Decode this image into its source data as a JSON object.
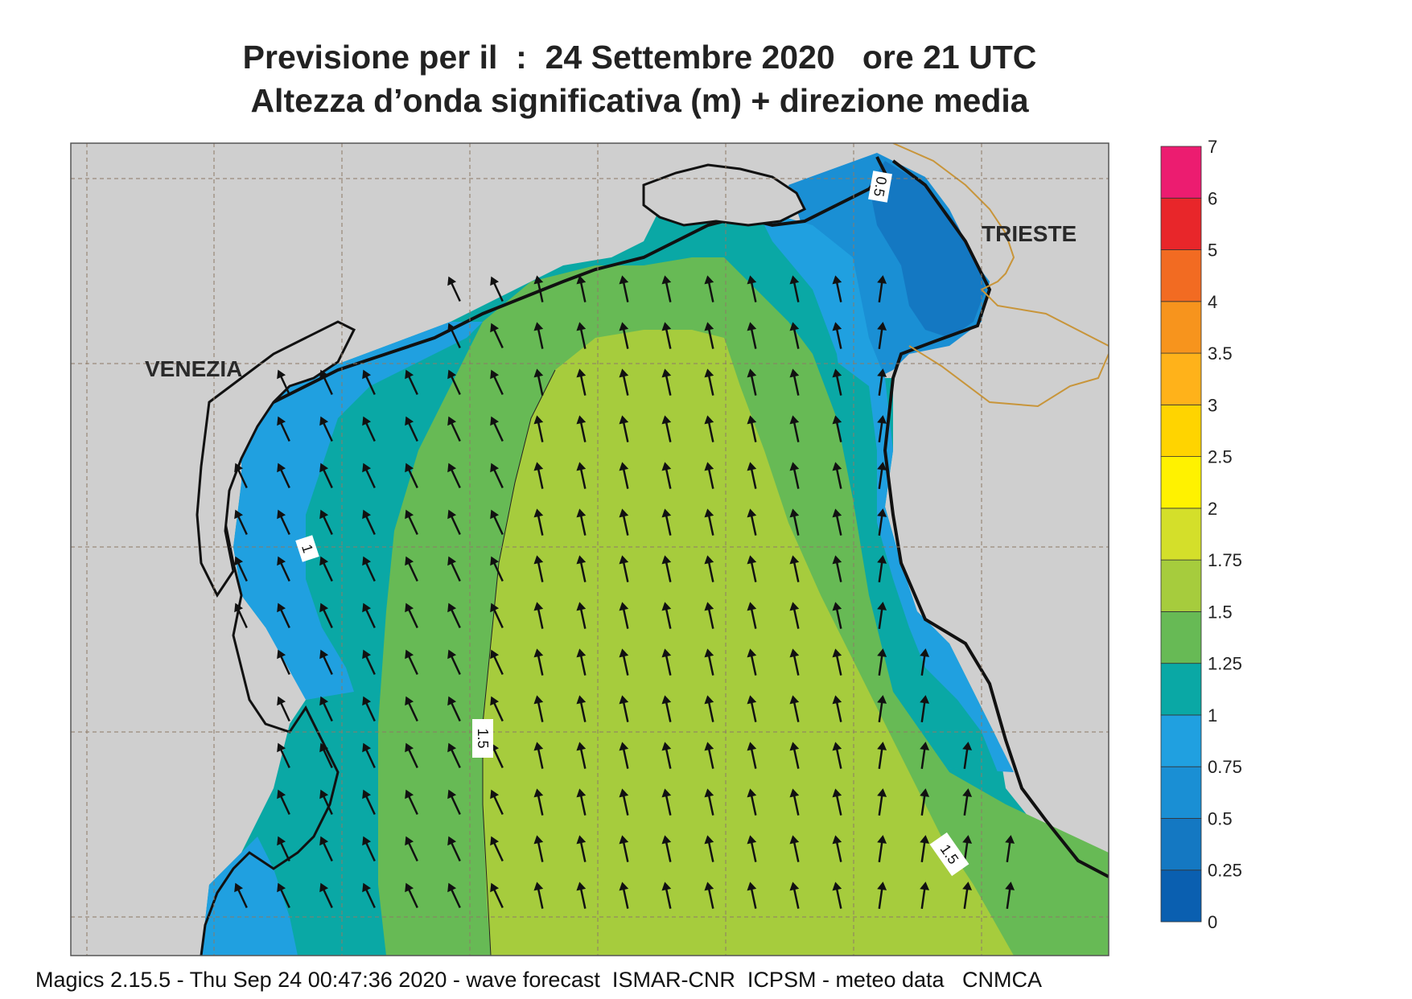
{
  "title": {
    "line1": "Previsione per il  :  24 Settembre 2020   ore 21 UTC",
    "line2": "Altezza d’onda significativa (m) + direzione media"
  },
  "cities": [
    "VENEZIA",
    "TRIESTE"
  ],
  "contour_labels": [
    "1",
    "1.5",
    "1.5",
    "0.5"
  ],
  "footer": "Magics 2.15.5 - Thu Sep 24 00:47:36 2020 - wave forecast  ISMAR-CNR  ICPSM - meteo data   CNMCA",
  "colorbar": {
    "ticks": [
      "0",
      "0.25",
      "0.5",
      "0.75",
      "1",
      "1.25",
      "1.5",
      "1.75",
      "2",
      "2.5",
      "3",
      "3.5",
      "4",
      "5",
      "6",
      "7"
    ],
    "colors": [
      "#0a5fb0",
      "#1478c2",
      "#1a8fd4",
      "#20a0e0",
      "#0aa8a5",
      "#67ba55",
      "#a6cc3d",
      "#d4df2a",
      "#fff200",
      "#ffd400",
      "#ffb21a",
      "#f7941d",
      "#f26b22",
      "#e8262a",
      "#ec1c70"
    ]
  },
  "wave_direction_note": "",
  "land_color": "#cfcfcf",
  "coast_color": "#111111",
  "border_color": "#c8953a"
}
